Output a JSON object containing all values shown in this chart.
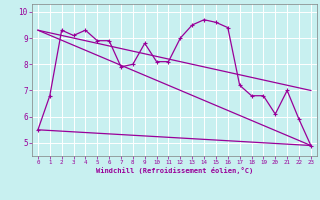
{
  "xlabel": "Windchill (Refroidissement éolien,°C)",
  "background_color": "#c8f0f0",
  "grid_color": "#ffffff",
  "line_color": "#990099",
  "spine_color": "#808080",
  "xlim": [
    -0.5,
    23.5
  ],
  "ylim": [
    4.5,
    10.3
  ],
  "yticks": [
    5,
    6,
    7,
    8,
    9,
    10
  ],
  "xticks": [
    0,
    1,
    2,
    3,
    4,
    5,
    6,
    7,
    8,
    9,
    10,
    11,
    12,
    13,
    14,
    15,
    16,
    17,
    18,
    19,
    20,
    21,
    22,
    23
  ],
  "series1_x": [
    0,
    1,
    2,
    3,
    4,
    5,
    6,
    7,
    8,
    9,
    10,
    11,
    12,
    13,
    14,
    15,
    16,
    17,
    18,
    19,
    20,
    21,
    22,
    23
  ],
  "series1_y": [
    5.5,
    6.8,
    9.3,
    9.1,
    9.3,
    8.9,
    8.9,
    7.9,
    8.0,
    8.8,
    8.1,
    8.1,
    9.0,
    9.5,
    9.7,
    9.6,
    9.4,
    7.2,
    6.8,
    6.8,
    6.1,
    7.0,
    5.9,
    4.9
  ],
  "line2_x": [
    0,
    23
  ],
  "line2_y": [
    9.3,
    7.0
  ],
  "line3_x": [
    0,
    23
  ],
  "line3_y": [
    9.3,
    4.9
  ],
  "line4_x": [
    0,
    23
  ],
  "line4_y": [
    5.5,
    4.9
  ]
}
